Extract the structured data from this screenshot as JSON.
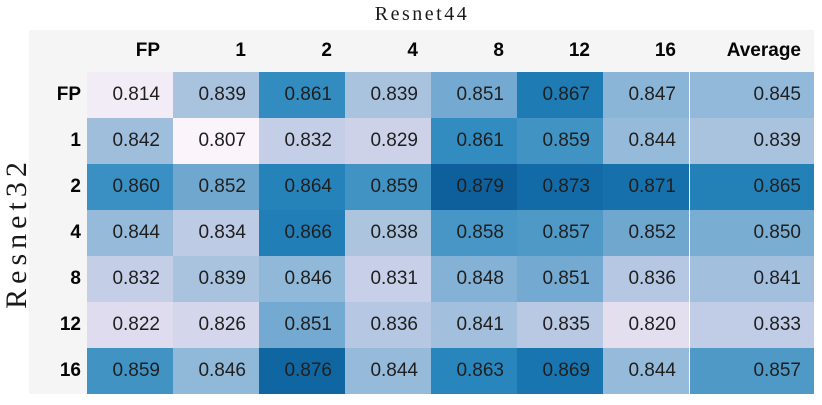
{
  "figure": {
    "title": "Resnet44",
    "ylabel": "Resnet32"
  },
  "chart_data": {
    "type": "heatmap",
    "title": "Resnet44",
    "ylabel": "Resnet32",
    "columns": [
      "FP",
      "1",
      "2",
      "4",
      "8",
      "12",
      "16",
      "Average"
    ],
    "rows": [
      "FP",
      "1",
      "2",
      "4",
      "8",
      "12",
      "16"
    ],
    "values": [
      [
        0.814,
        0.839,
        0.861,
        0.839,
        0.851,
        0.867,
        0.847,
        0.845
      ],
      [
        0.842,
        0.807,
        0.832,
        0.829,
        0.861,
        0.859,
        0.844,
        0.839
      ],
      [
        0.86,
        0.852,
        0.864,
        0.859,
        0.879,
        0.873,
        0.871,
        0.865
      ],
      [
        0.844,
        0.834,
        0.866,
        0.838,
        0.858,
        0.857,
        0.852,
        0.85
      ],
      [
        0.832,
        0.839,
        0.846,
        0.831,
        0.848,
        0.851,
        0.836,
        0.841
      ],
      [
        0.822,
        0.826,
        0.851,
        0.836,
        0.841,
        0.835,
        0.82,
        0.833
      ],
      [
        0.859,
        0.846,
        0.876,
        0.844,
        0.863,
        0.869,
        0.844,
        0.857
      ]
    ],
    "value_decimals": 3,
    "legend_position": "none",
    "grid": false,
    "color_scale": {
      "min": 0.807,
      "max": 0.879,
      "anchors": [
        [
          0.807,
          "#FBF4FA"
        ],
        [
          0.814,
          "#F1ECF5"
        ],
        [
          0.82,
          "#E3DFEF"
        ],
        [
          0.826,
          "#D4D6EB"
        ],
        [
          0.832,
          "#C5CEE7"
        ],
        [
          0.839,
          "#A9C2DE"
        ],
        [
          0.846,
          "#8FB8D9"
        ],
        [
          0.852,
          "#6FA7CF"
        ],
        [
          0.858,
          "#4896C5"
        ],
        [
          0.862,
          "#2C89BE"
        ],
        [
          0.868,
          "#1B78B2"
        ],
        [
          0.873,
          "#126BA7"
        ],
        [
          0.879,
          "#0D609B"
        ]
      ]
    },
    "colors": {
      "table_background": "#f6f5f6",
      "page_background": "#ffffff",
      "text": "#1f1f1f",
      "header_text": "#060606"
    }
  }
}
